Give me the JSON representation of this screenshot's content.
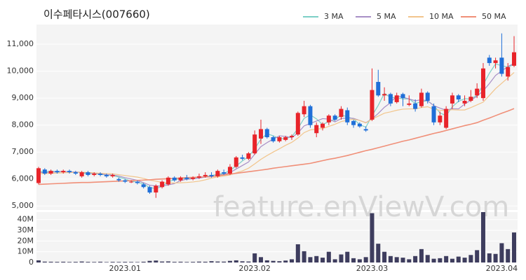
{
  "chart_data": {
    "type": "candlestick",
    "title": "이수페타시스(007660)",
    "watermark": "feature.enViewV.com",
    "categories": [
      null,
      null,
      null,
      null,
      null,
      null,
      null,
      null,
      null,
      null,
      null,
      null,
      null,
      null,
      "2023.01",
      null,
      null,
      null,
      null,
      null,
      null,
      null,
      null,
      null,
      null,
      null,
      null,
      null,
      null,
      null,
      null,
      null,
      null,
      null,
      null,
      "2023.02",
      null,
      null,
      null,
      null,
      null,
      null,
      null,
      null,
      null,
      null,
      null,
      null,
      null,
      null,
      null,
      null,
      null,
      null,
      "2023.03",
      null,
      null,
      null,
      null,
      null,
      null,
      null,
      null,
      null,
      null,
      null,
      null,
      null,
      null,
      null,
      null,
      null,
      null,
      null,
      null,
      "2023.04",
      null,
      null
    ],
    "open": [
      5850,
      6350,
      6200,
      6300,
      6250,
      6300,
      6250,
      6100,
      6250,
      6150,
      6200,
      6150,
      6100,
      6000,
      5950,
      5900,
      5900,
      5800,
      5700,
      5500,
      5700,
      5800,
      6050,
      5950,
      6050,
      6000,
      6050,
      6100,
      6150,
      6100,
      6250,
      6200,
      6450,
      6800,
      6750,
      6950,
      7500,
      7850,
      7550,
      7400,
      7450,
      7550,
      7650,
      8400,
      8700,
      7700,
      7900,
      8100,
      8350,
      8300,
      8550,
      8150,
      8050,
      7850,
      8200,
      9600,
      9100,
      9150,
      8850,
      9150,
      8750,
      8800,
      8700,
      9200,
      8700,
      8100,
      7900,
      8800,
      9100,
      8800,
      8900,
      9100,
      9000,
      10500,
      10300,
      10500,
      9800,
      10200
    ],
    "high": [
      6450,
      6400,
      6350,
      6350,
      6350,
      6350,
      6300,
      6300,
      6300,
      6250,
      6250,
      6200,
      6200,
      6050,
      6000,
      5950,
      5950,
      5850,
      5750,
      5800,
      5950,
      6100,
      6100,
      6100,
      6150,
      6100,
      6200,
      6250,
      6250,
      6350,
      6350,
      6550,
      6850,
      6900,
      7000,
      7800,
      8200,
      7900,
      7600,
      7600,
      7600,
      7650,
      8500,
      8900,
      8750,
      8100,
      8100,
      8400,
      8400,
      8700,
      8650,
      8200,
      8100,
      7950,
      10100,
      10050,
      9400,
      9200,
      9200,
      9200,
      9100,
      8950,
      9350,
      9250,
      8800,
      8500,
      8700,
      9200,
      9150,
      9100,
      9300,
      9550,
      10300,
      10600,
      10500,
      11400,
      10300,
      11300
    ],
    "low": [
      5800,
      6150,
      6150,
      6200,
      6200,
      6200,
      6150,
      6050,
      6100,
      6100,
      6100,
      6050,
      6050,
      5900,
      5850,
      5850,
      5800,
      5650,
      5450,
      5300,
      5650,
      5750,
      5900,
      5900,
      5950,
      5950,
      6000,
      6050,
      6050,
      6050,
      6150,
      6150,
      6400,
      6700,
      6700,
      6900,
      7300,
      7500,
      7350,
      7350,
      7400,
      7450,
      7600,
      8300,
      7900,
      7550,
      7800,
      8000,
      8150,
      8200,
      8000,
      7900,
      7900,
      7750,
      8150,
      9050,
      8900,
      8700,
      8800,
      8700,
      8700,
      8500,
      8650,
      8800,
      8000,
      8000,
      7850,
      8600,
      8850,
      8700,
      8850,
      9000,
      8900,
      10200,
      10100,
      9800,
      9650,
      10150
    ],
    "close": [
      6400,
      6200,
      6300,
      6250,
      6300,
      6250,
      6200,
      6250,
      6150,
      6200,
      6150,
      6100,
      6150,
      5950,
      5900,
      5900,
      5850,
      5700,
      5500,
      5750,
      5900,
      6050,
      5950,
      6050,
      6000,
      6050,
      6100,
      6150,
      6100,
      6300,
      6200,
      6450,
      6800,
      6750,
      6950,
      7650,
      7850,
      7550,
      7400,
      7550,
      7550,
      7600,
      8450,
      8700,
      8000,
      8000,
      8050,
      8350,
      8200,
      8600,
      8100,
      8000,
      7950,
      7800,
      9300,
      9100,
      9150,
      8800,
      9100,
      9000,
      8800,
      8600,
      9200,
      8900,
      8100,
      8350,
      8600,
      9100,
      8950,
      8900,
      9050,
      9350,
      10100,
      10300,
      10400,
      9900,
      10150,
      10700
    ],
    "up_color": "#e8242a",
    "down_color": "#1f6fd8",
    "ylim": [
      4850,
      11730
    ],
    "yticks": [
      {
        "value": 5000,
        "label": "5,000"
      },
      {
        "value": 6000,
        "label": "6,000"
      },
      {
        "value": 7000,
        "label": "7,000"
      },
      {
        "value": 8000,
        "label": "8,000"
      },
      {
        "value": 9000,
        "label": "9,000"
      },
      {
        "value": 10000,
        "label": "10,000"
      },
      {
        "value": 11000,
        "label": "11,000"
      }
    ],
    "ma": [
      {
        "name": "3 MA",
        "color": "#7ccfc6",
        "values": [
          6300,
          6250,
          6300,
          6250,
          6280,
          6270,
          6250,
          6230,
          6200,
          6200,
          6170,
          6150,
          6130,
          6070,
          6000,
          5920,
          5880,
          5820,
          5680,
          5650,
          5720,
          5900,
          5970,
          6020,
          6000,
          6030,
          6050,
          6100,
          6120,
          6180,
          6200,
          6320,
          6480,
          6670,
          6830,
          7120,
          7480,
          7680,
          7600,
          7500,
          7500,
          7570,
          7870,
          8250,
          8380,
          8230,
          8020,
          8130,
          8200,
          8380,
          8300,
          8230,
          8020,
          7920,
          8350,
          8730,
          9180,
          9020,
          9020,
          8970,
          8970,
          8800,
          8870,
          8900,
          8730,
          8450,
          8350,
          8680,
          8880,
          8980,
          8970,
          9100,
          9500,
          9920,
          10270,
          10200,
          10150,
          10250
        ]
      },
      {
        "name": "5 MA",
        "color": "#a88fc6",
        "values": [
          6250,
          6230,
          6260,
          6260,
          6290,
          6260,
          6260,
          6250,
          6230,
          6210,
          6190,
          6160,
          6150,
          6110,
          6050,
          6000,
          5950,
          5860,
          5770,
          5740,
          5740,
          5780,
          5830,
          5940,
          5990,
          6010,
          6030,
          6070,
          6080,
          6140,
          6170,
          6240,
          6370,
          6500,
          6630,
          6920,
          7200,
          7350,
          7480,
          7600,
          7580,
          7530,
          7710,
          7970,
          8060,
          8150,
          8240,
          8220,
          8120,
          8240,
          8260,
          8250,
          8170,
          8090,
          8230,
          8430,
          8660,
          8830,
          9090,
          9030,
          8970,
          8900,
          8940,
          8900,
          8720,
          8630,
          8550,
          8610,
          8600,
          8780,
          8920,
          9070,
          9270,
          9540,
          9840,
          10010,
          10170,
          10290
        ]
      },
      {
        "name": "10 MA",
        "color": "#f2c58c",
        "values": [
          6200,
          6200,
          6210,
          6220,
          6230,
          6240,
          6240,
          6250,
          6240,
          6230,
          6210,
          6200,
          6190,
          6160,
          6130,
          6100,
          6070,
          6020,
          5960,
          5920,
          5870,
          5860,
          5850,
          5860,
          5870,
          5890,
          5920,
          5970,
          6030,
          6080,
          6110,
          6150,
          6230,
          6300,
          6400,
          6560,
          6730,
          6870,
          7000,
          7120,
          7250,
          7360,
          7520,
          7720,
          7820,
          7850,
          7870,
          7950,
          8030,
          8130,
          8180,
          8220,
          8170,
          8080,
          8220,
          8330,
          8440,
          8490,
          8550,
          8590,
          8600,
          8600,
          8650,
          8680,
          8590,
          8550,
          8540,
          8570,
          8560,
          8560,
          8650,
          8750,
          8850,
          9100,
          9350,
          9550,
          9750,
          9950
        ]
      },
      {
        "name": "50 MA",
        "color": "#f08f78",
        "values": [
          5800,
          5810,
          5820,
          5830,
          5840,
          5850,
          5860,
          5870,
          5870,
          5880,
          5890,
          5900,
          5910,
          5920,
          5930,
          5940,
          5950,
          5960,
          5970,
          5990,
          6000,
          6010,
          6020,
          6040,
          6050,
          6060,
          6070,
          6080,
          6090,
          6120,
          6150,
          6180,
          6210,
          6240,
          6270,
          6300,
          6330,
          6360,
          6400,
          6430,
          6460,
          6490,
          6520,
          6550,
          6580,
          6630,
          6680,
          6730,
          6770,
          6820,
          6870,
          6930,
          6990,
          7050,
          7100,
          7160,
          7220,
          7280,
          7340,
          7400,
          7450,
          7510,
          7570,
          7630,
          7690,
          7740,
          7800,
          7860,
          7920,
          7980,
          8030,
          8090,
          8180,
          8260,
          8350,
          8440,
          8520,
          8610
        ]
      }
    ],
    "volume": [
      2000000,
      800000,
      700000,
      600000,
      700000,
      500000,
      600000,
      900000,
      600000,
      500000,
      700000,
      400000,
      600000,
      500000,
      600000,
      500000,
      400000,
      700000,
      1500000,
      1800000,
      900000,
      1000000,
      600000,
      700000,
      500000,
      600000,
      800000,
      700000,
      1200000,
      900000,
      800000,
      1500000,
      2000000,
      1100000,
      900000,
      8500000,
      5000000,
      2000000,
      1500000,
      1200000,
      1800000,
      3000000,
      17000000,
      10500000,
      5000000,
      6000000,
      4500000,
      10000000,
      3000000,
      7500000,
      10000000,
      4000000,
      3000000,
      5000000,
      46000000,
      17500000,
      10000000,
      6000000,
      5000000,
      4500000,
      3000000,
      6000000,
      12500000,
      7000000,
      3500000,
      4000000,
      6000000,
      3500000,
      5500000,
      4500000,
      7000000,
      11500000,
      47000000,
      8500000,
      8000000,
      18000000,
      12500000,
      28000000
    ],
    "volume_color": "#3e3d5e",
    "volume_ylim": [
      0,
      47000000
    ],
    "volume_yticks": [
      0,
      {
        "value": 10000000,
        "label": "10M"
      },
      {
        "value": 20000000,
        "label": "20M"
      },
      {
        "value": 30000000,
        "label": "30M"
      },
      {
        "value": 40000000,
        "label": "40M"
      }
    ]
  }
}
